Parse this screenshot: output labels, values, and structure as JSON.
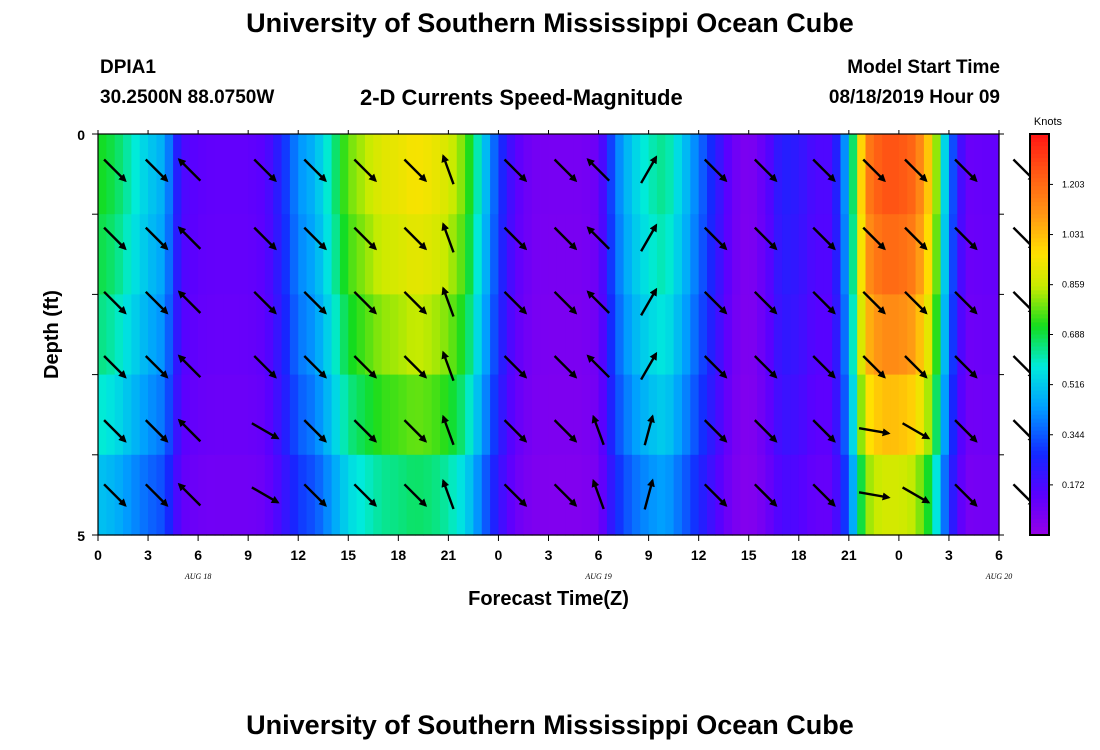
{
  "page": {
    "title": "University of Southern Mississippi Ocean Cube",
    "footer_title": "University of Southern Mississippi Ocean Cube",
    "station_id": "DPIA1",
    "coordinates": "30.2500N 88.0750W",
    "chart_subtitle": "2-D Currents Speed-Magnitude",
    "model_label": "Model Start Time",
    "model_time": "08/18/2019 Hour 09"
  },
  "chart_data": {
    "type": "heatmap",
    "title": "2-D Currents Speed-Magnitude",
    "xlabel": "Forecast Time(Z)",
    "ylabel": "Depth (ft)",
    "ylim": [
      0,
      5
    ],
    "colorbar_unit": "Knots",
    "colorbar_ticks": [
      "1.203",
      "1.031",
      "0.859",
      "0.688",
      "0.516",
      "0.344",
      "0.172"
    ],
    "value_range": [
      0.0,
      1.376
    ],
    "xtick_labels": [
      "0",
      "3",
      "6",
      "9",
      "12",
      "15",
      "18",
      "21",
      "0",
      "3",
      "6",
      "9",
      "12",
      "15",
      "18",
      "21",
      "0",
      "3",
      "6"
    ],
    "date_labels": [
      {
        "label": "AUG 18",
        "hour": 6
      },
      {
        "label": "AUG 19",
        "hour": 30
      },
      {
        "label": "AUG 20",
        "hour": 54
      }
    ],
    "ytick_labels": [
      "0",
      "5"
    ],
    "hours": 54,
    "depth_layers": 5,
    "speed_profile": [
      0.72,
      0.68,
      0.6,
      0.52,
      0.46,
      0.17,
      0.13,
      0.12,
      0.12,
      0.12,
      0.14,
      0.26,
      0.42,
      0.48,
      0.62,
      0.78,
      0.84,
      0.9,
      0.92,
      0.95,
      0.93,
      0.88,
      0.78,
      0.55,
      0.3,
      0.14,
      0.08,
      0.07,
      0.07,
      0.07,
      0.1,
      0.38,
      0.52,
      0.6,
      0.64,
      0.52,
      0.38,
      0.24,
      0.1,
      0.05,
      0.12,
      0.25,
      0.22,
      0.16,
      0.16,
      0.5,
      1.15,
      1.25,
      1.25,
      1.2,
      0.95,
      0.4,
      0.1,
      0.11,
      0.12
    ],
    "layer_factors": [
      1.0,
      0.96,
      0.9,
      0.82,
      0.7
    ],
    "arrow_hours": [
      1,
      3.5,
      5.5,
      10,
      13,
      16,
      19,
      21,
      25,
      28,
      30,
      33,
      37,
      40,
      43.5,
      46.5,
      49,
      52,
      55.5
    ],
    "arrow_dirs_deg": [
      135,
      135,
      315,
      135,
      135,
      135,
      135,
      340,
      135,
      135,
      315,
      30,
      135,
      135,
      135,
      135,
      135,
      135,
      135
    ],
    "arrow_dirs_deep_deg": [
      135,
      135,
      315,
      120,
      135,
      135,
      135,
      340,
      135,
      135,
      340,
      15,
      135,
      135,
      135,
      100,
      120,
      135,
      135
    ]
  }
}
